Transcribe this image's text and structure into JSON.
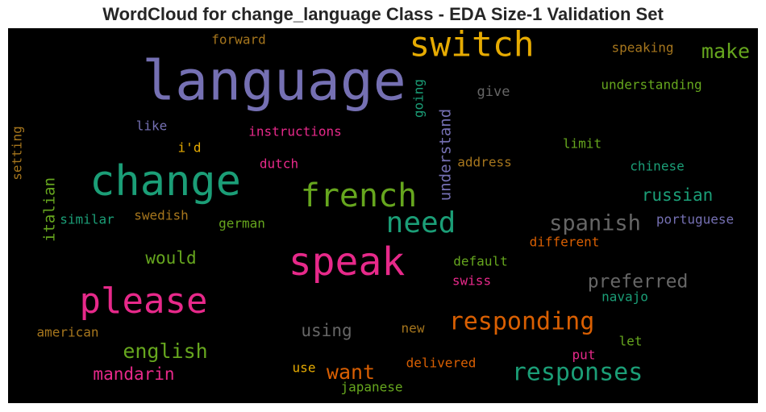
{
  "title": "WordCloud for change_language Class - EDA Size-1 Validation Set",
  "words": [
    {
      "text": "language",
      "color": "#7570b3"
    },
    {
      "text": "switch",
      "color": "#e6ab02"
    },
    {
      "text": "change",
      "color": "#1b9e77"
    },
    {
      "text": "french",
      "color": "#66a61e"
    },
    {
      "text": "speak",
      "color": "#e7298a"
    },
    {
      "text": "please",
      "color": "#e7298a"
    },
    {
      "text": "need",
      "color": "#1b9e77"
    },
    {
      "text": "spanish",
      "color": "#666666"
    },
    {
      "text": "responding",
      "color": "#d95f02"
    },
    {
      "text": "responses",
      "color": "#1b9e77"
    },
    {
      "text": "make",
      "color": "#66a61e"
    },
    {
      "text": "forward",
      "color": "#a6761d"
    },
    {
      "text": "speaking",
      "color": "#a6761d"
    },
    {
      "text": "understanding",
      "color": "#66a61e"
    },
    {
      "text": "give",
      "color": "#666666"
    },
    {
      "text": "going",
      "color": "#1b9e77"
    },
    {
      "text": "understand",
      "color": "#7570b3"
    },
    {
      "text": "like",
      "color": "#7570b3"
    },
    {
      "text": "instructions",
      "color": "#e7298a"
    },
    {
      "text": "i'd",
      "color": "#e6ab02"
    },
    {
      "text": "limit",
      "color": "#66a61e"
    },
    {
      "text": "setting",
      "color": "#a6761d"
    },
    {
      "text": "dutch",
      "color": "#e7298a"
    },
    {
      "text": "address",
      "color": "#a6761d"
    },
    {
      "text": "chinese",
      "color": "#1b9e77"
    },
    {
      "text": "italian",
      "color": "#66a61e"
    },
    {
      "text": "russian",
      "color": "#1b9e77"
    },
    {
      "text": "similar",
      "color": "#1b9e77"
    },
    {
      "text": "swedish",
      "color": "#a6761d"
    },
    {
      "text": "german",
      "color": "#66a61e"
    },
    {
      "text": "portuguese",
      "color": "#7570b3"
    },
    {
      "text": "different",
      "color": "#d95f02"
    },
    {
      "text": "would",
      "color": "#66a61e"
    },
    {
      "text": "default",
      "color": "#66a61e"
    },
    {
      "text": "preferred",
      "color": "#666666"
    },
    {
      "text": "swiss",
      "color": "#e7298a"
    },
    {
      "text": "navajo",
      "color": "#1b9e77"
    },
    {
      "text": "american",
      "color": "#a6761d"
    },
    {
      "text": "using",
      "color": "#666666"
    },
    {
      "text": "new",
      "color": "#a6761d"
    },
    {
      "text": "english",
      "color": "#66a61e"
    },
    {
      "text": "let",
      "color": "#66a61e"
    },
    {
      "text": "put",
      "color": "#e7298a"
    },
    {
      "text": "mandarin",
      "color": "#e7298a"
    },
    {
      "text": "use",
      "color": "#e6ab02"
    },
    {
      "text": "want",
      "color": "#d95f02"
    },
    {
      "text": "delivered",
      "color": "#d95f02"
    },
    {
      "text": "japanese",
      "color": "#66a61e"
    }
  ]
}
